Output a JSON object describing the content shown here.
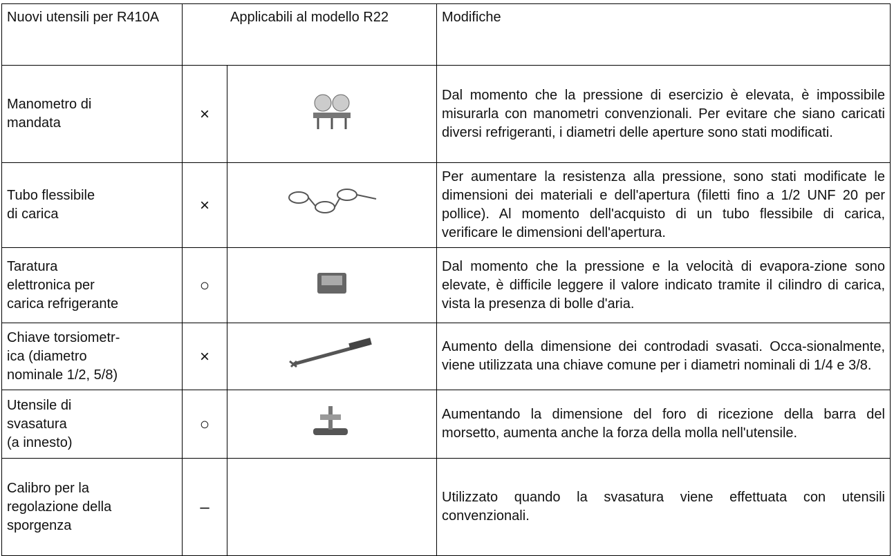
{
  "table": {
    "header": [
      "Nuovi utensili per R410A",
      "Applicabili al modello R22",
      "Modifiche"
    ],
    "rows": [
      [
        "Manometro di\nmandata",
        "×",
        "Dal momento che la pressione di esercizio è elevata, è impossibile misurarla con manometri convenzionali. Per evitare che siano caricati diversi refrigeranti, i diametri delle aperture sono stati modificati."
      ],
      [
        "Tubo flessibile\ndi carica",
        "×",
        "Per aumentare la resistenza alla pressione, sono stati modificate le dimensioni dei materiali e dell'apertura (filetti fino a 1/2 UNF 20 per pollice). Al momento dell'acquisto di un tubo flessibile di carica, verificare le dimensioni dell'apertura."
      ],
      [
        "Taratura\nelettronica per\ncarica refrigerante",
        "○",
        "Dal momento che la pressione e la velocità di evapora-zione sono elevate, è difficile leggere il valore indicato tramite il cilindro di carica, vista la presenza di bolle d'aria."
      ],
      [
        "Chiave torsiometr-\nica (diametro\nnominale 1/2, 5/8)",
        "×",
        "Aumento della dimensione dei controdadi svasati. Occa-sionalmente, viene utilizzata una chiave comune per i diametri nominali di 1/4 e 3/8."
      ],
      [
        "Utensile di\nsvasatura\n(a innesto)",
        "○",
        "Aumentando la dimensione del foro di ricezione della barra del morsetto, aumenta anche la forza della molla nell'utensile."
      ],
      [
        "Calibro per la\nregolazione della\nsporgenza",
        "–",
        "Utilizzato quando la svasatura viene effettuata con utensili convenzionali."
      ]
    ]
  }
}
